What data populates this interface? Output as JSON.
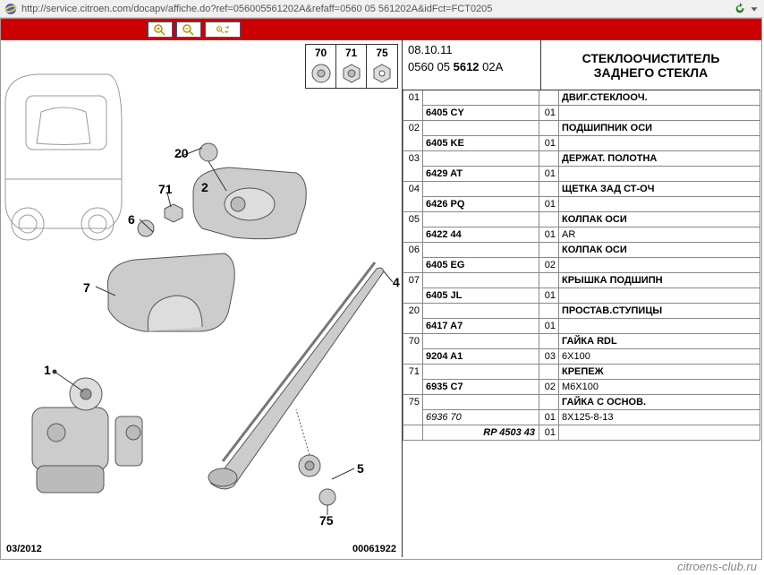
{
  "browser": {
    "url": "http://service.citroen.com/docapv/affiche.do?ref=056005561202A&refaff=0560 05 561202A&idFct=FCT0205"
  },
  "header": {
    "date": "08.10.11",
    "ref_prefix": "0560 05 ",
    "ref_bold": "5612",
    "ref_suffix": " 02A",
    "title_line1": "СТЕКЛООЧИСТИТЕЛЬ",
    "title_line2": "ЗАДНЕГО СТЕКЛА"
  },
  "diagram": {
    "callout_top": [
      "70",
      "71",
      "75"
    ],
    "labels": {
      "1": "1",
      "2": "2",
      "4": "4",
      "5": "5",
      "6": "6",
      "7": "7",
      "20": "20",
      "71": "71",
      "75": "75"
    },
    "footer_date": "03/2012",
    "footer_id": "00061922"
  },
  "parts": [
    {
      "num": "01",
      "ref": "6405 CY",
      "qty": "01",
      "desc": "ДВИГ.СТЕКЛООЧ.",
      "note": ""
    },
    {
      "num": "02",
      "ref": "6405 KE",
      "qty": "01",
      "desc": "ПОДШИПНИК ОСИ",
      "note": ""
    },
    {
      "num": "03",
      "ref": "6429 AT",
      "qty": "01",
      "desc": "ДЕРЖАТ. ПОЛОТНА",
      "note": ""
    },
    {
      "num": "04",
      "ref": "6426 PQ",
      "qty": "01",
      "desc": "ЩЕТКА ЗАД СТ-ОЧ",
      "note": ""
    },
    {
      "num": "05",
      "ref": "6422 44",
      "qty": "01",
      "desc": "КОЛПАК ОСИ",
      "note": "AR"
    },
    {
      "num": "06",
      "ref": "6405 EG",
      "qty": "02",
      "desc": "КОЛПАК ОСИ",
      "note": ""
    },
    {
      "num": "07",
      "ref": "6405 JL",
      "qty": "01",
      "desc": "КРЫШКА ПОДШИПН",
      "note": ""
    },
    {
      "num": "20",
      "ref": "6417 A7",
      "qty": "01",
      "desc": "ПРОСТАВ.СТУПИЦЫ",
      "note": ""
    },
    {
      "num": "70",
      "ref": "9204 A1",
      "qty": "03",
      "desc": "ГАЙКА RDL",
      "note": "6X100"
    },
    {
      "num": "71",
      "ref": "6935 C7",
      "qty": "02",
      "desc": "КРЕПЕЖ",
      "note": "M6X100"
    },
    {
      "num": "75",
      "ref": "6936 70",
      "refstyle": "italic",
      "qty": "01",
      "desc": "ГАЙКА С ОСНОВ.",
      "note": "8X125-8-13",
      "sub": "RP 4503 43",
      "subqty": "01"
    }
  ],
  "watermark": "citroens-club.ru",
  "colors": {
    "toolbar_bg": "#c00",
    "border": "#333",
    "ie_blue": "#3a66c4",
    "ie_yellow": "#f7c843"
  }
}
